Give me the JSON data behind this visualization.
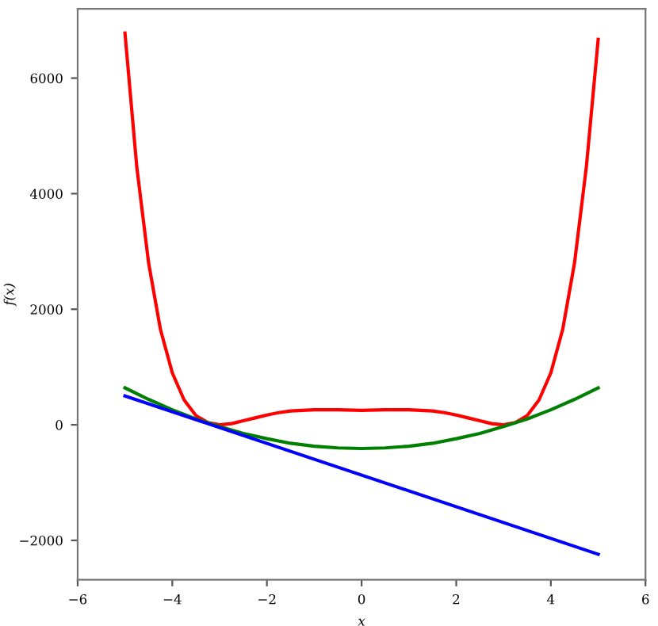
{
  "chart_data": {
    "type": "line",
    "xlabel": "x",
    "ylabel": "f(x)",
    "xlim": [
      -6,
      6
    ],
    "ylim": [
      -2680,
      7200
    ],
    "xticks": [
      {
        "value": -6,
        "label": "−6"
      },
      {
        "value": -4,
        "label": "−4"
      },
      {
        "value": -2,
        "label": "−2"
      },
      0,
      2,
      4,
      6
    ],
    "yticks": [
      {
        "value": -2000,
        "label": "−2000"
      },
      0,
      2000,
      4000,
      6000
    ],
    "grid": false,
    "legend": false,
    "series": [
      {
        "color": "#ff0000",
        "x": [
          -5,
          -4.75,
          -4.5,
          -4.25,
          -4,
          -3.75,
          -3.5,
          -3.25,
          -3,
          -2.75,
          -2.5,
          -2.25,
          -2,
          -1.75,
          -1.5,
          -1.25,
          -1,
          -0.5,
          0,
          0.5,
          1,
          1.25,
          1.5,
          1.75,
          2,
          2.25,
          2.5,
          2.75,
          3,
          3.25,
          3.5,
          3.75,
          4,
          4.25,
          4.5,
          4.75,
          5
        ],
        "values": [
          6780,
          4460,
          2800,
          1650,
          900,
          430,
          160,
          40,
          0,
          20,
          70,
          120,
          170,
          210,
          240,
          250,
          260,
          260,
          250,
          260,
          260,
          250,
          240,
          210,
          170,
          120,
          70,
          20,
          0,
          40,
          160,
          430,
          900,
          1650,
          2800,
          4460,
          6670
        ]
      },
      {
        "color": "#008000",
        "x": [
          -5,
          -4.5,
          -4,
          -3.5,
          -3,
          -2.5,
          -2,
          -1.5,
          -1,
          -0.5,
          0,
          0.5,
          1,
          1.5,
          2,
          2.5,
          3,
          3.5,
          4,
          4.5,
          5
        ],
        "values": [
          640,
          440,
          260,
          100,
          -30,
          -150,
          -240,
          -320,
          -370,
          -400,
          -410,
          -400,
          -370,
          -320,
          -240,
          -150,
          -30,
          100,
          260,
          440,
          640
        ]
      },
      {
        "color": "#0000ff",
        "x": [
          -5,
          5
        ],
        "values": [
          500,
          -2240
        ]
      }
    ]
  }
}
